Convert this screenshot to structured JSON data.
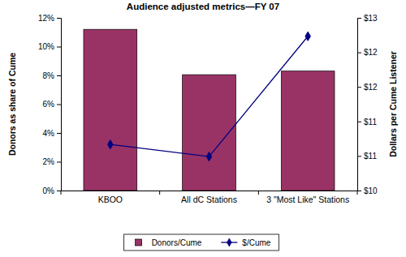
{
  "chart_data": {
    "type": "bar",
    "title": "Audience adjusted metrics—FY 07",
    "categories": [
      "KBOO",
      "All dC Stations",
      "3 \"Most Like\" Stations"
    ],
    "series": [
      {
        "name": "Donors/Cume",
        "type": "bar",
        "color": "#993366",
        "values": [
          11.2,
          8.05,
          8.3
        ]
      },
      {
        "name": "$/Cume",
        "type": "line",
        "color": "#000080",
        "marker": "diamond",
        "axis": "y2",
        "values": [
          10.8,
          10.59,
          12.68
        ]
      }
    ],
    "y_label": "Donors as share of Cume",
    "y2_label": "Dollars per Cume Listener",
    "ylim": [
      0,
      12
    ],
    "yticks": [
      {
        "value": 0,
        "label": "0%"
      },
      {
        "value": 2,
        "label": "2%"
      },
      {
        "value": 4,
        "label": "4%"
      },
      {
        "value": 6,
        "label": "6%"
      },
      {
        "value": 8,
        "label": "8%"
      },
      {
        "value": 10,
        "label": "10%"
      },
      {
        "value": 12,
        "label": "12%"
      }
    ],
    "y2lim": [
      10,
      13
    ],
    "y2ticks": [
      {
        "value": 10,
        "label": "$10"
      },
      {
        "value": 10.6,
        "label": "$11"
      },
      {
        "value": 11.2,
        "label": "$11"
      },
      {
        "value": 11.8,
        "label": "$12"
      },
      {
        "value": 12.4,
        "label": "$12"
      },
      {
        "value": 13,
        "label": "$13"
      }
    ],
    "legend": "bottom",
    "grid": false
  }
}
